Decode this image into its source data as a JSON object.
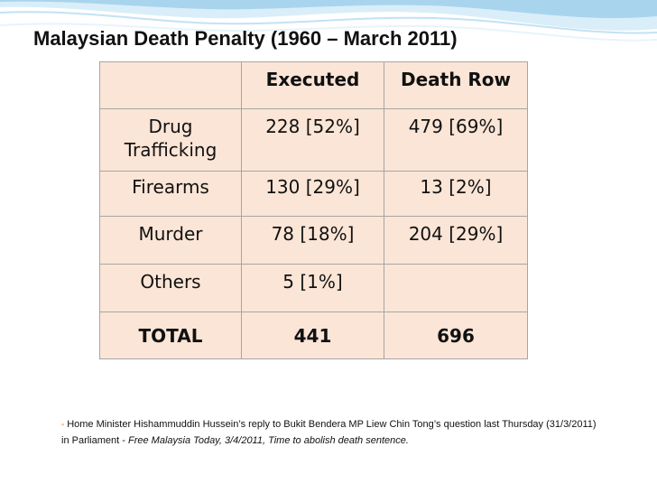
{
  "slide": {
    "title": "Malaysian Death Penalty (1960 – March 2011)"
  },
  "table": {
    "headers": [
      "",
      "Executed",
      "Death Row"
    ],
    "rows": [
      {
        "category": "Drug Trafficking",
        "executed": "228 [52%]",
        "death_row": "479 [69%]"
      },
      {
        "category": "Firearms",
        "executed": "130 [29%]",
        "death_row": "13 [2%]"
      },
      {
        "category": "Murder",
        "executed": "78 [18%]",
        "death_row": "204 [29%]"
      },
      {
        "category": "Others",
        "executed": "5 [1%]",
        "death_row": ""
      }
    ],
    "total": {
      "category": "TOTAL",
      "executed": "441",
      "death_row": "696"
    }
  },
  "footnote": {
    "bullet": "▪",
    "text": "Home Minister Hishammuddin Hussein’s reply to Bukit Bendera MP Liew Chin Tong’s question last Thursday (31/3/2011) in Parliament - ",
    "source": "Free Malaysia Today, 3/4/2011, Time to abolish death sentence."
  },
  "colors": {
    "table_fill": "#fbe5d6",
    "table_border": "#a6a6a6",
    "wave_blue": "#a9d4ee"
  }
}
